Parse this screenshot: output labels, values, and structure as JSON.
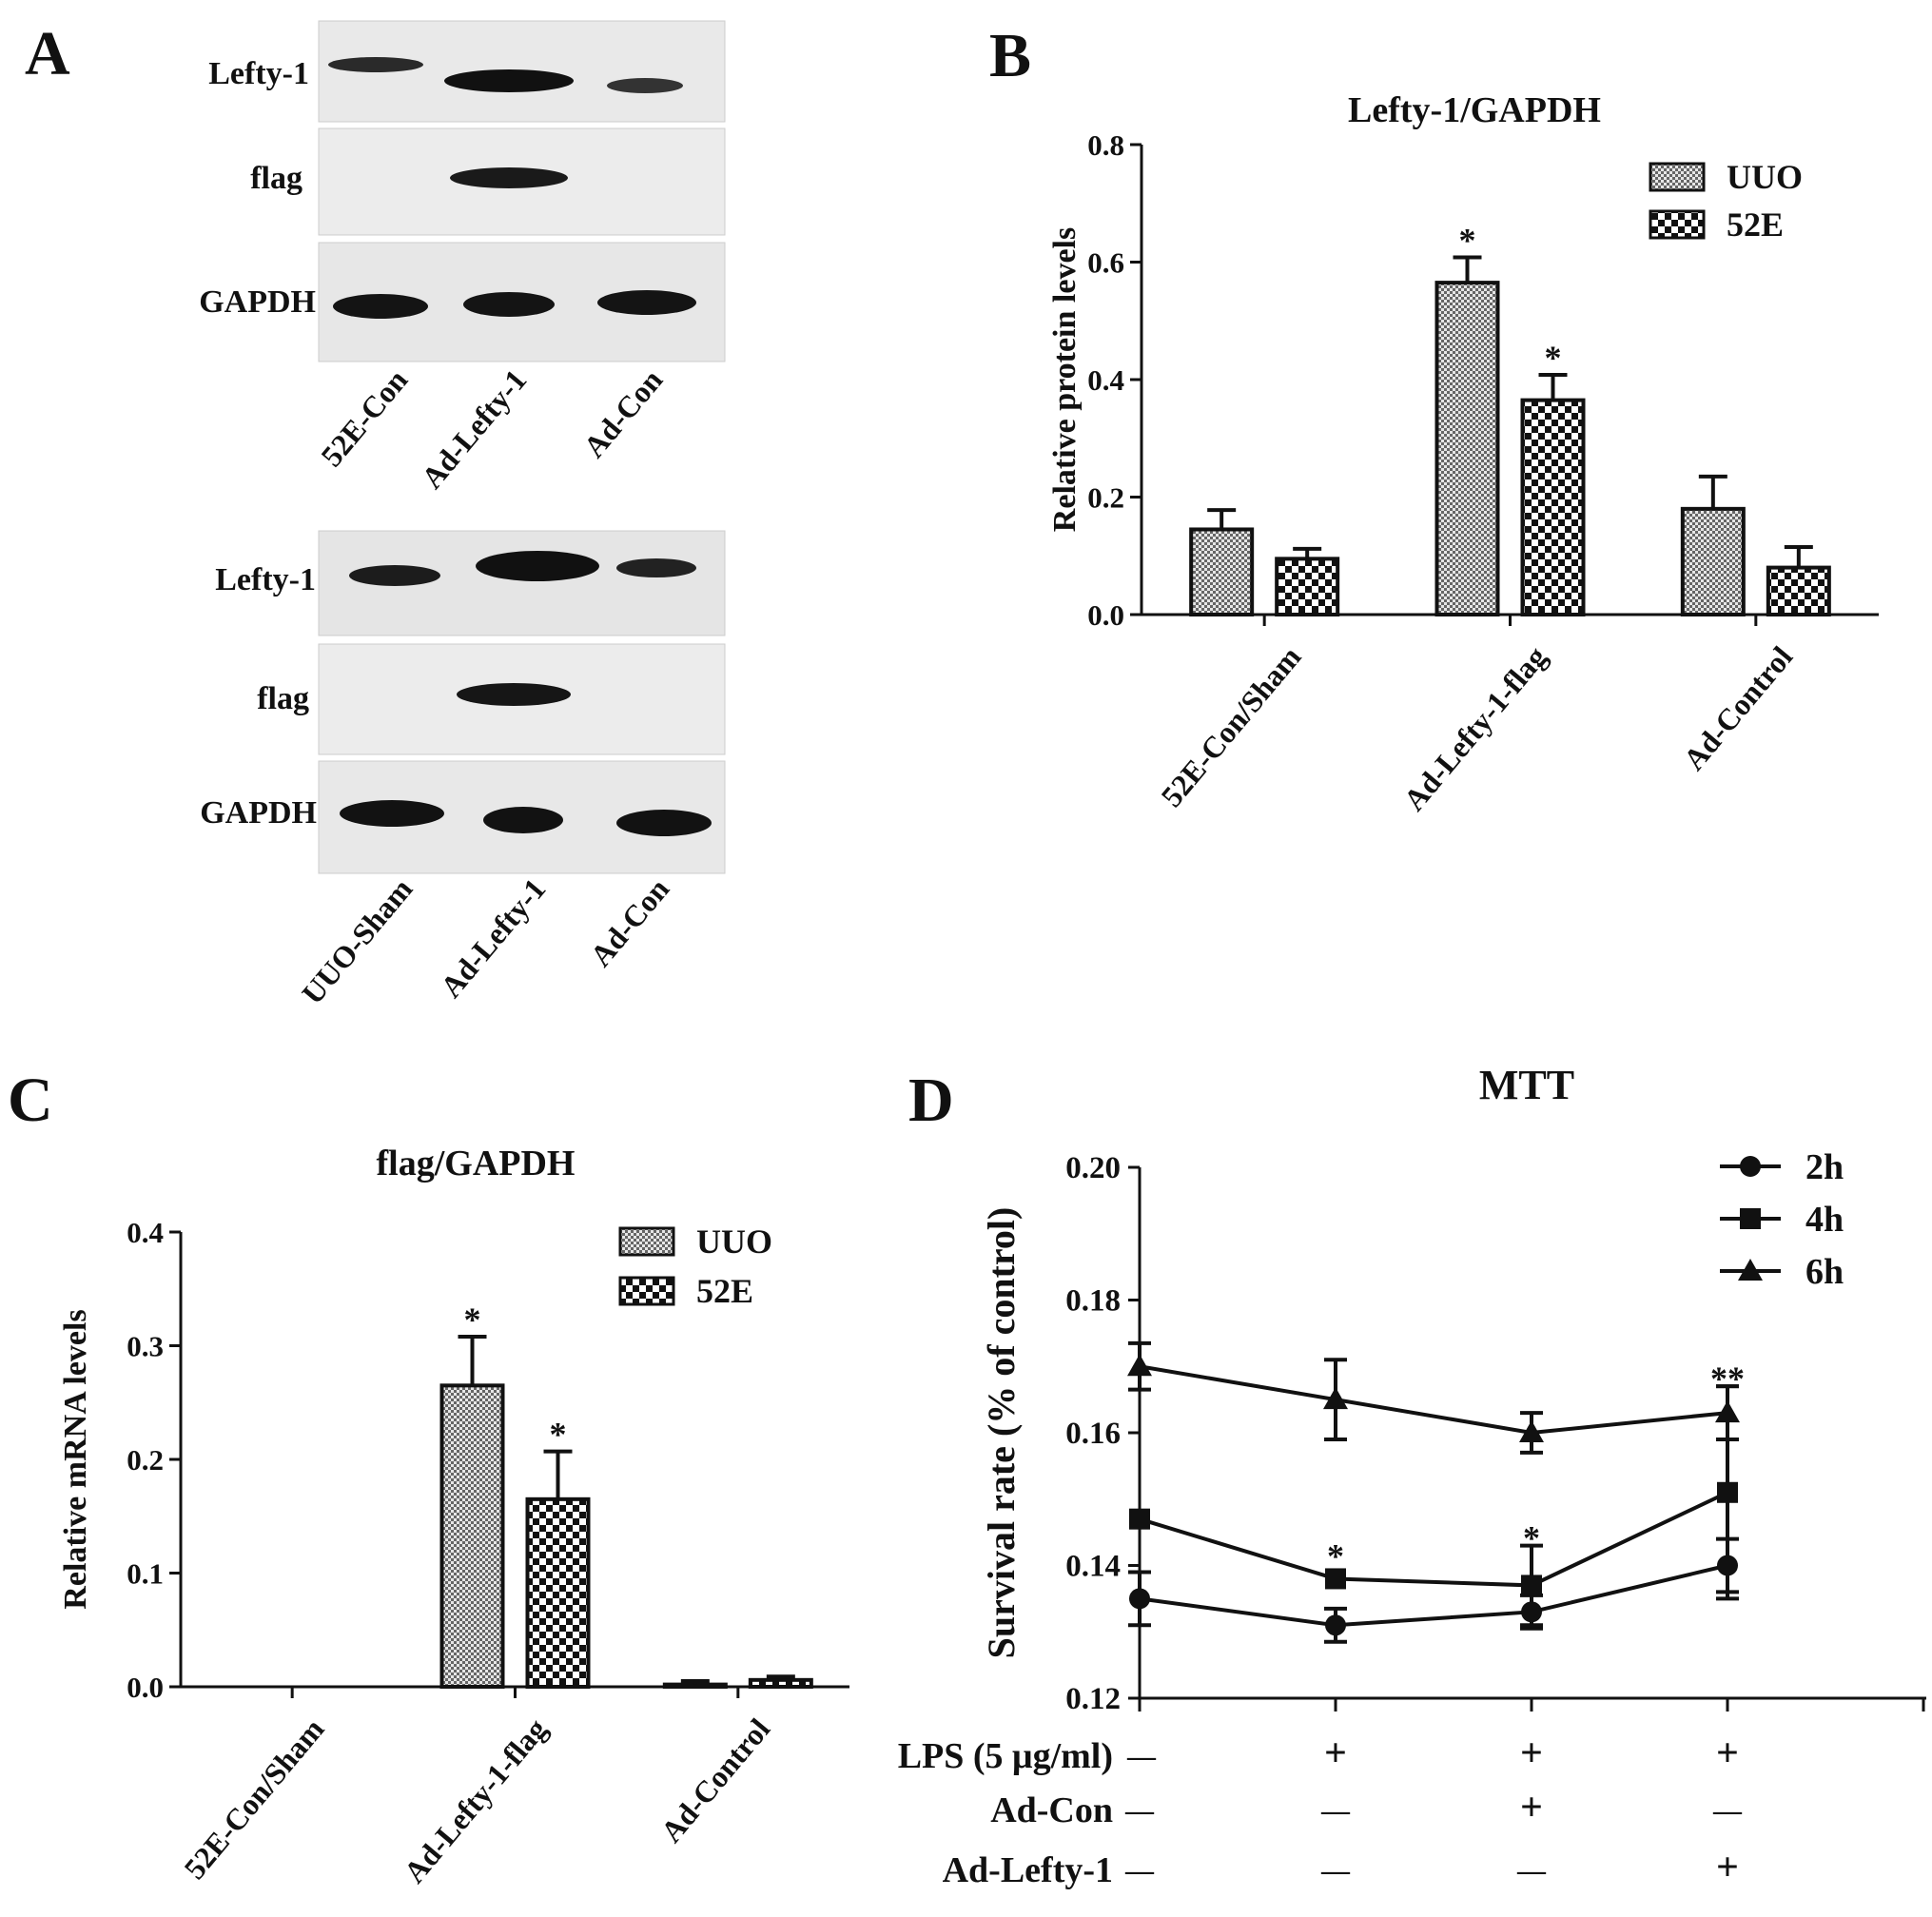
{
  "panels": {
    "A": {
      "letter": "A",
      "blots": [
        {
          "bands": [
            "Lefty-1",
            "flag",
            "GAPDH"
          ],
          "lanes": [
            "52E-Con",
            "Ad-Lefty-1",
            "Ad-Con"
          ]
        },
        {
          "bands": [
            "Lefty-1",
            "flag",
            "GAPDH"
          ],
          "lanes": [
            "UUO-Sham",
            "Ad-Lefty-1",
            "Ad-Con"
          ]
        }
      ]
    },
    "B": {
      "letter": "B"
    },
    "C": {
      "letter": "C"
    },
    "D": {
      "letter": "D",
      "treatments": [
        {
          "label": "LPS (5 μg/ml)",
          "marks": [
            "—",
            "+",
            "+",
            "+"
          ]
        },
        {
          "label": "Ad-Con",
          "marks": [
            "—",
            "—",
            "+",
            "—"
          ]
        },
        {
          "label": "Ad-Lefty-1",
          "marks": [
            "—",
            "—",
            "—",
            "+"
          ]
        }
      ]
    }
  },
  "chart_data": [
    {
      "panel": "B",
      "type": "bar",
      "title": "Lefty-1/GAPDH",
      "xlabel": "",
      "ylabel": "Relative protein levels",
      "ylim": [
        0,
        0.8
      ],
      "yticks": [
        "0.0",
        "0.2",
        "0.4",
        "0.6",
        "0.8"
      ],
      "categories": [
        "52E-Con/Sham",
        "Ad-Lefty-1-flag",
        "Ad-Control"
      ],
      "series": [
        {
          "name": "UUO",
          "values": [
            0.145,
            0.565,
            0.18
          ],
          "errors": [
            0.033,
            0.043,
            0.055
          ],
          "stars": [
            "",
            "*",
            ""
          ],
          "pattern": "fine"
        },
        {
          "name": "52E",
          "values": [
            0.095,
            0.365,
            0.08
          ],
          "errors": [
            0.017,
            0.043,
            0.035
          ],
          "stars": [
            "",
            "*",
            ""
          ],
          "pattern": "checker"
        }
      ],
      "legend": "top-right",
      "grid": false
    },
    {
      "panel": "C",
      "type": "bar",
      "title": "flag/GAPDH",
      "xlabel": "",
      "ylabel": "Relative  mRNA levels",
      "ylim": [
        0,
        0.4
      ],
      "yticks": [
        "0.0",
        "0.1",
        "0.2",
        "0.3",
        "0.4"
      ],
      "categories": [
        "52E-Con/Sham",
        "Ad-Lefty-1-flag",
        "Ad-Control"
      ],
      "series": [
        {
          "name": "UUO",
          "values": [
            0,
            0.265,
            0.002
          ],
          "errors": [
            0,
            0.043,
            0.003
          ],
          "stars": [
            "",
            "*",
            ""
          ],
          "pattern": "fine"
        },
        {
          "name": "52E",
          "values": [
            0,
            0.165,
            0.006
          ],
          "errors": [
            0,
            0.042,
            0.003
          ],
          "stars": [
            "",
            "*",
            ""
          ],
          "pattern": "checker"
        }
      ],
      "legend": "top-right",
      "grid": false
    },
    {
      "panel": "D",
      "type": "line",
      "title": "MTT",
      "xlabel": "",
      "ylabel": "Survival rate (% of control)",
      "ylim": [
        0.12,
        0.2
      ],
      "yticks": [
        "0.12",
        "0.14",
        "0.16",
        "0.18",
        "0.20"
      ],
      "x": [
        1,
        2,
        3,
        4
      ],
      "series": [
        {
          "name": "2h",
          "marker": "circle",
          "values": [
            0.135,
            0.131,
            0.133,
            0.14
          ],
          "errors": [
            0.004,
            0.0025,
            0.0025,
            0.004
          ],
          "stars": [
            "",
            "",
            "",
            ""
          ]
        },
        {
          "name": "4h",
          "marker": "square",
          "values": [
            0.147,
            0.138,
            0.137,
            0.151
          ],
          "errors": [
            0.0,
            0.0,
            0.006,
            0.016
          ],
          "stars": [
            "",
            "*",
            "*",
            ""
          ]
        },
        {
          "name": "6h",
          "marker": "triangle",
          "values": [
            0.17,
            0.165,
            0.16,
            0.163
          ],
          "errors": [
            0.0035,
            0.006,
            0.003,
            0.004
          ],
          "stars": [
            "",
            "",
            "",
            "**"
          ]
        }
      ],
      "legend": "top-right",
      "grid": false
    }
  ]
}
